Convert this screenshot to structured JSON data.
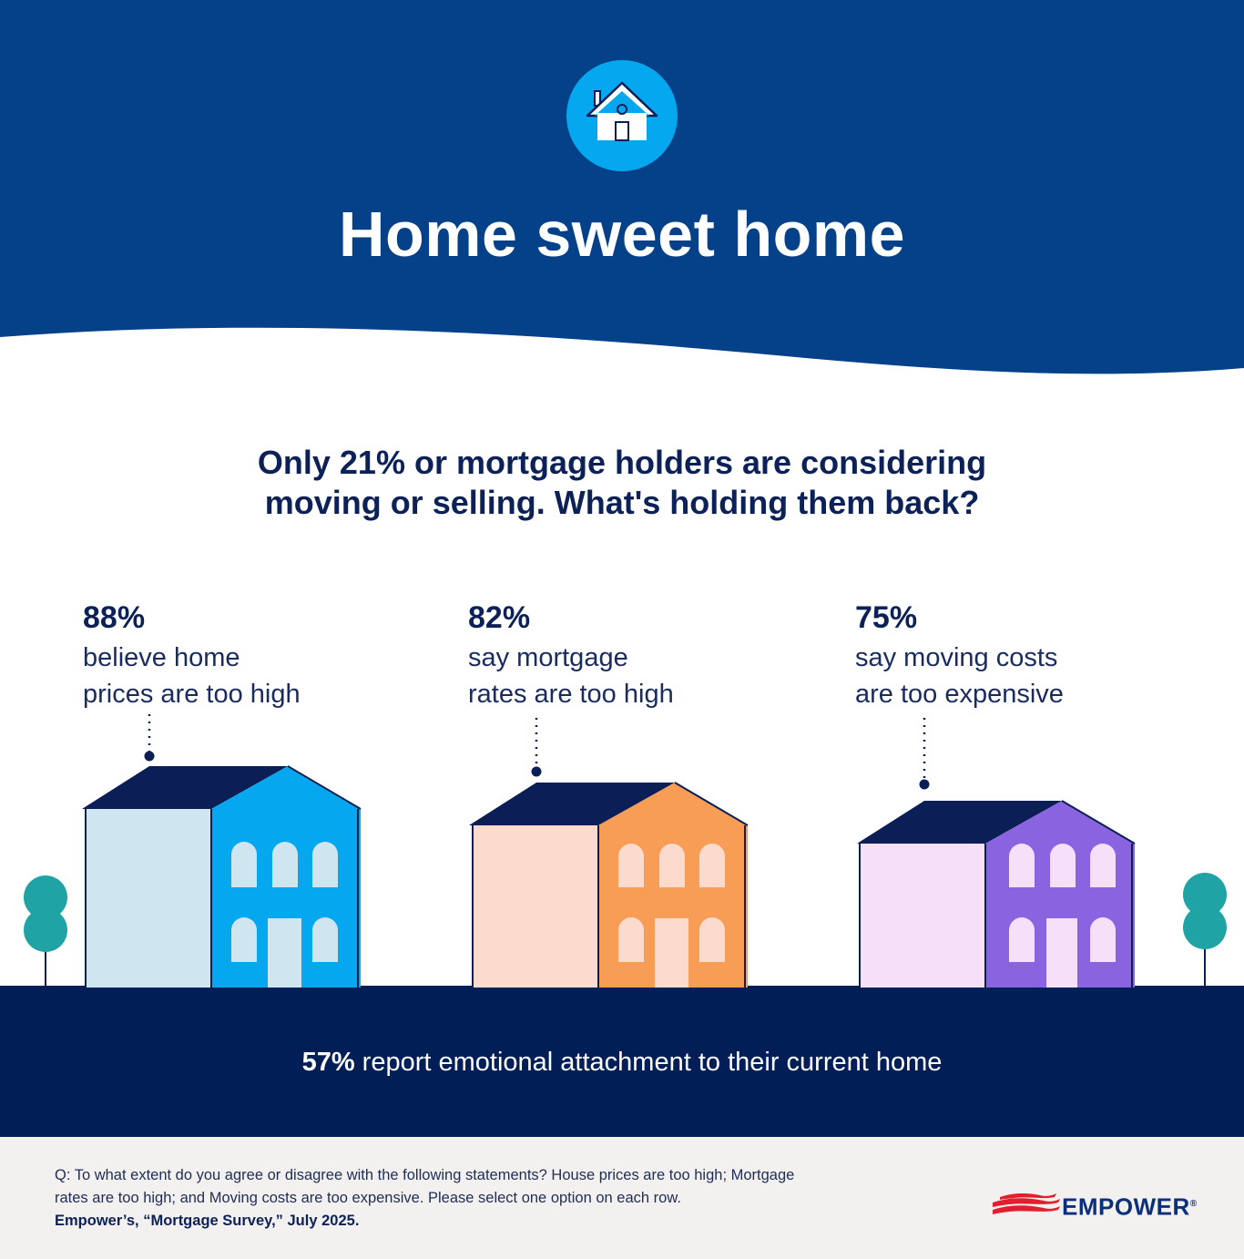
{
  "header": {
    "title": "Home sweet home",
    "icon": "house-icon"
  },
  "subtitle": {
    "line1": "Only 21% or mortgage holders are considering",
    "line2": "moving or selling. What's holding them back?"
  },
  "stats": [
    {
      "percent": "88%",
      "line1": "believe home",
      "line2": "prices are too high",
      "house_colors": {
        "left": "#cfe5ef",
        "right": "#05a7ef",
        "windows": "#cfe5ef"
      }
    },
    {
      "percent": "82%",
      "line1": "say mortgage",
      "line2": "rates are too high",
      "house_colors": {
        "left": "#fcdbcf",
        "right": "#f79d56",
        "windows": "#fcdbcf"
      }
    },
    {
      "percent": "75%",
      "line1": "say moving costs",
      "line2": "are too expensive",
      "house_colors": {
        "left": "#f6dff9",
        "right": "#8a63e0",
        "windows": "#f6dff9"
      }
    }
  ],
  "bottom": {
    "percent": "57%",
    "text": " report emotional attachment to their current home"
  },
  "footnote": {
    "line1": "Q: To what extent do you agree or disagree with the following statements? House prices are too high; Mortgage",
    "line2": "rates are too high; and Moving costs are too expensive. Please select one option on each row.",
    "source": "Empower’s, “Mortgage Survey,” July 2025."
  },
  "logo": {
    "text": "EMPOWER",
    "mark": "®"
  },
  "colors": {
    "header_blue": "#044189",
    "navy": "#011e57",
    "roof": "#0b1f56",
    "tree": "#20a3a4",
    "footer_bg": "#f2f1ef",
    "logo_red": "#e0202f"
  }
}
